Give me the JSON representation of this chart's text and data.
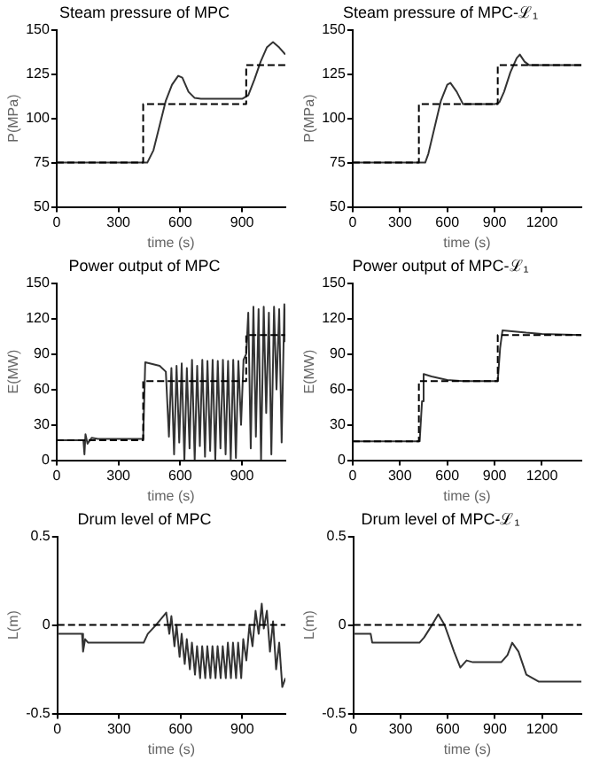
{
  "chart_data": [
    {
      "type": "line",
      "title": "Steam pressure of MPC",
      "xlabel": "time (s)",
      "ylabel": "P(MPa)",
      "xlim": [
        0,
        1110
      ],
      "xticks": [
        0,
        300,
        600,
        900
      ],
      "ylim": [
        50,
        150
      ],
      "yticks": [
        50,
        75,
        100,
        125,
        150
      ],
      "grid": false,
      "legend": false,
      "marker": "none",
      "series": [
        {
          "color": "#000000",
          "line_style": "dashed",
          "x": [
            0,
            420,
            420,
            920,
            920,
            1110
          ],
          "values": [
            75,
            75,
            108,
            108,
            130,
            130
          ]
        },
        {
          "color": "#333333",
          "line_style": "solid",
          "x": [
            0,
            440,
            470,
            500,
            530,
            560,
            590,
            610,
            640,
            670,
            700,
            900,
            930,
            960,
            990,
            1020,
            1050,
            1080,
            1110
          ],
          "values": [
            75,
            75,
            82,
            96,
            110,
            119,
            124,
            123,
            115,
            111.5,
            111,
            111,
            113,
            122,
            132,
            140,
            143,
            140,
            136
          ]
        }
      ]
    },
    {
      "type": "line",
      "title": "Steam pressure of MPC-ℒ₁",
      "xlabel": "time (s)",
      "ylabel": "P(MPa)",
      "xlim": [
        0,
        1450
      ],
      "xticks": [
        0,
        300,
        600,
        900,
        1200
      ],
      "ylim": [
        50,
        150
      ],
      "yticks": [
        50,
        75,
        100,
        125,
        150
      ],
      "grid": false,
      "legend": false,
      "marker": "none",
      "series": [
        {
          "color": "#000000",
          "line_style": "dashed",
          "x": [
            0,
            420,
            420,
            920,
            920,
            1450
          ],
          "values": [
            75,
            75,
            108,
            108,
            130,
            130
          ]
        },
        {
          "color": "#333333",
          "line_style": "solid",
          "x": [
            0,
            460,
            480,
            520,
            560,
            600,
            620,
            660,
            700,
            900,
            930,
            960,
            1000,
            1040,
            1060,
            1090,
            1120,
            1450
          ],
          "values": [
            75,
            75,
            80,
            95,
            110,
            119,
            120,
            115,
            108,
            108,
            109,
            115,
            126,
            134,
            136,
            132,
            130,
            130
          ]
        }
      ]
    },
    {
      "type": "line",
      "title": "Power output of MPC",
      "xlabel": "time (s)",
      "ylabel": "E(MW)",
      "xlim": [
        0,
        1110
      ],
      "xticks": [
        0,
        300,
        600,
        900
      ],
      "ylim": [
        0,
        150
      ],
      "yticks": [
        0,
        30,
        60,
        90,
        120,
        150
      ],
      "grid": false,
      "legend": false,
      "marker": "none",
      "series": [
        {
          "color": "#000000",
          "line_style": "dashed",
          "x": [
            0,
            420,
            420,
            920,
            920,
            1110
          ],
          "values": [
            17,
            17,
            67,
            67,
            106,
            106
          ]
        },
        {
          "color": "#333333",
          "line_style": "solid",
          "x": [
            0,
            130,
            135,
            140,
            150,
            170,
            200,
            420,
            430,
            500,
            530,
            545,
            557,
            570,
            582,
            595,
            607,
            620,
            632,
            645,
            657,
            670,
            682,
            695,
            707,
            720,
            732,
            745,
            757,
            770,
            782,
            795,
            807,
            820,
            832,
            845,
            857,
            870,
            882,
            895,
            907,
            920,
            930,
            942,
            955,
            967,
            980,
            992,
            1005,
            1017,
            1030,
            1042,
            1055,
            1067,
            1080,
            1092,
            1105,
            1110
          ],
          "values": [
            17,
            17,
            5,
            22,
            14,
            19,
            18,
            18,
            83,
            80,
            75,
            20,
            78,
            5,
            80,
            15,
            82,
            0,
            78,
            10,
            85,
            0,
            80,
            12,
            85,
            3,
            84,
            8,
            85,
            0,
            84,
            10,
            85,
            5,
            84,
            0,
            85,
            2,
            84,
            30,
            85,
            90,
            125,
            10,
            130,
            20,
            128,
            0,
            130,
            40,
            125,
            5,
            130,
            60,
            128,
            15,
            132,
            100
          ]
        }
      ]
    },
    {
      "type": "line",
      "title": "Power output of MPC-ℒ₁",
      "xlabel": "time (s)",
      "ylabel": "E(MW)",
      "xlim": [
        0,
        1450
      ],
      "xticks": [
        0,
        300,
        600,
        900,
        1200
      ],
      "ylim": [
        0,
        150
      ],
      "yticks": [
        0,
        30,
        60,
        90,
        120,
        150
      ],
      "grid": false,
      "legend": false,
      "marker": "none",
      "series": [
        {
          "color": "#000000",
          "line_style": "dashed",
          "x": [
            0,
            420,
            420,
            920,
            920,
            1450
          ],
          "values": [
            16,
            16,
            67,
            67,
            106,
            106
          ]
        },
        {
          "color": "#333333",
          "line_style": "solid",
          "x": [
            0,
            425,
            440,
            450,
            500,
            600,
            700,
            920,
            935,
            950,
            1100,
            1200,
            1450
          ],
          "values": [
            16,
            16,
            50,
            73,
            71,
            68,
            67,
            67,
            95,
            110,
            108,
            107,
            106
          ]
        }
      ]
    },
    {
      "type": "line",
      "title": "Drum level of MPC",
      "xlabel": "time (s)",
      "ylabel": "L(m)",
      "xlim": [
        0,
        1110
      ],
      "xticks": [
        0,
        300,
        600,
        900
      ],
      "ylim": [
        -0.5,
        0.5
      ],
      "yticks": [
        -0.5,
        0,
        0.5
      ],
      "grid": false,
      "legend": false,
      "marker": "none",
      "ref_lines": [
        {
          "axis": "y",
          "value": 0,
          "color": "#000000",
          "line_style": "dashed"
        }
      ],
      "series": [
        {
          "color": "#333333",
          "line_style": "solid",
          "x": [
            0,
            120,
            125,
            135,
            150,
            200,
            420,
            440,
            480,
            530,
            545,
            555,
            570,
            580,
            595,
            605,
            620,
            630,
            645,
            655,
            670,
            680,
            695,
            705,
            720,
            730,
            745,
            755,
            770,
            780,
            795,
            805,
            820,
            830,
            845,
            855,
            870,
            880,
            895,
            905,
            920,
            935,
            950,
            965,
            980,
            995,
            1005,
            1020,
            1035,
            1050,
            1065,
            1080,
            1095,
            1110
          ],
          "values": [
            -0.05,
            -0.05,
            -0.15,
            -0.08,
            -0.1,
            -0.1,
            -0.1,
            -0.05,
            0,
            0.07,
            -0.05,
            0.05,
            -0.12,
            0,
            -0.18,
            -0.05,
            -0.22,
            -0.08,
            -0.25,
            -0.1,
            -0.28,
            -0.12,
            -0.3,
            -0.12,
            -0.3,
            -0.12,
            -0.3,
            -0.12,
            -0.3,
            -0.12,
            -0.3,
            -0.12,
            -0.3,
            -0.1,
            -0.3,
            -0.1,
            -0.3,
            -0.1,
            -0.3,
            -0.08,
            -0.2,
            0,
            -0.12,
            0.08,
            -0.05,
            0.12,
            -0.02,
            0.08,
            -0.15,
            0.02,
            -0.25,
            -0.1,
            -0.35,
            -0.3
          ]
        }
      ]
    },
    {
      "type": "line",
      "title": "Drum level of MPC-ℒ₁",
      "xlabel": "time (s)",
      "ylabel": "L(m)",
      "xlim": [
        0,
        1450
      ],
      "xticks": [
        0,
        300,
        600,
        900,
        1200
      ],
      "ylim": [
        -0.5,
        0.5
      ],
      "yticks": [
        -0.5,
        0,
        0.5
      ],
      "grid": false,
      "legend": false,
      "marker": "none",
      "ref_lines": [
        {
          "axis": "y",
          "value": 0,
          "color": "#000000",
          "line_style": "dashed"
        }
      ],
      "series": [
        {
          "color": "#333333",
          "line_style": "solid",
          "x": [
            0,
            110,
            120,
            420,
            450,
            500,
            540,
            580,
            640,
            680,
            720,
            760,
            940,
            980,
            1010,
            1050,
            1100,
            1140,
            1180,
            1450
          ],
          "values": [
            -0.05,
            -0.05,
            -0.1,
            -0.1,
            -0.07,
            0,
            0.06,
            0,
            -0.15,
            -0.24,
            -0.2,
            -0.21,
            -0.21,
            -0.17,
            -0.1,
            -0.15,
            -0.28,
            -0.3,
            -0.32,
            -0.32
          ]
        }
      ]
    }
  ]
}
